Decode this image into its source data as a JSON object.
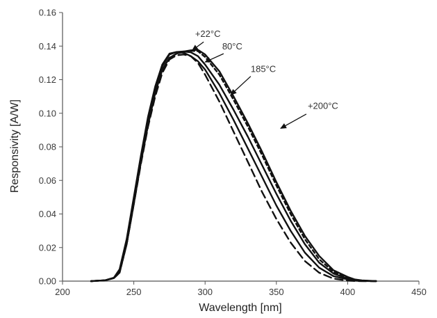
{
  "chart_data": {
    "type": "line",
    "title": "",
    "xlabel": "Wavelength [nm]",
    "ylabel": "Responsivity [A/W]",
    "xlim": [
      200,
      450
    ],
    "ylim": [
      0,
      0.16
    ],
    "x_ticks": [
      "200",
      "250",
      "300",
      "350",
      "400",
      "450"
    ],
    "y_ticks": [
      "0.00",
      "0.02",
      "0.04",
      "0.06",
      "0.08",
      "0.10",
      "0.12",
      "0.14",
      "0.16"
    ],
    "grid": false,
    "legend": "none",
    "series": [
      {
        "style": "long-dash",
        "x": [
          220,
          230,
          236,
          240,
          245,
          250,
          255,
          260,
          265,
          270,
          275,
          280,
          285,
          290,
          295,
          300,
          310,
          320,
          330,
          340,
          350,
          360,
          370,
          380,
          390,
          400,
          405,
          410,
          420
        ],
        "y": [
          0.0,
          0.0005,
          0.002,
          0.006,
          0.022,
          0.046,
          0.07,
          0.092,
          0.11,
          0.124,
          0.132,
          0.1345,
          0.135,
          0.134,
          0.13,
          0.123,
          0.107,
          0.089,
          0.071,
          0.053,
          0.037,
          0.023,
          0.012,
          0.005,
          0.0015,
          0.0003,
          0.0001,
          0.0,
          0.0
        ]
      },
      {
        "style": "solid",
        "x": [
          220,
          230,
          236,
          240,
          245,
          250,
          255,
          260,
          265,
          270,
          275,
          280,
          285,
          290,
          295,
          300,
          310,
          320,
          330,
          340,
          350,
          360,
          370,
          380,
          390,
          400,
          405,
          410,
          420
        ],
        "y": [
          0.0,
          0.0005,
          0.002,
          0.007,
          0.025,
          0.05,
          0.075,
          0.098,
          0.116,
          0.129,
          0.1355,
          0.1365,
          0.136,
          0.134,
          0.131,
          0.126,
          0.112,
          0.096,
          0.079,
          0.062,
          0.045,
          0.03,
          0.017,
          0.008,
          0.003,
          0.001,
          0.0003,
          0.0001,
          0.0
        ]
      },
      {
        "style": "solid",
        "x": [
          220,
          230,
          236,
          240,
          245,
          250,
          255,
          260,
          265,
          270,
          275,
          280,
          285,
          290,
          295,
          300,
          310,
          320,
          330,
          340,
          350,
          360,
          370,
          380,
          390,
          400,
          405,
          410,
          420
        ],
        "y": [
          0.0,
          0.0005,
          0.002,
          0.006,
          0.024,
          0.048,
          0.073,
          0.095,
          0.114,
          0.128,
          0.135,
          0.1365,
          0.1368,
          0.1363,
          0.134,
          0.129,
          0.117,
          0.102,
          0.086,
          0.069,
          0.052,
          0.036,
          0.022,
          0.011,
          0.0045,
          0.0015,
          0.0006,
          0.0002,
          0.0
        ]
      },
      {
        "style": "short-dash",
        "x": [
          220,
          230,
          236,
          240,
          245,
          250,
          255,
          260,
          265,
          270,
          275,
          280,
          285,
          290,
          295,
          300,
          310,
          320,
          330,
          340,
          350,
          360,
          370,
          380,
          390,
          400,
          405,
          410,
          420
        ],
        "y": [
          0.0,
          0.0005,
          0.0018,
          0.005,
          0.022,
          0.046,
          0.071,
          0.093,
          0.112,
          0.126,
          0.133,
          0.1355,
          0.1365,
          0.1372,
          0.137,
          0.1335,
          0.123,
          0.108,
          0.092,
          0.075,
          0.057,
          0.04,
          0.025,
          0.013,
          0.0055,
          0.002,
          0.0008,
          0.0003,
          0.0
        ]
      },
      {
        "style": "solid",
        "x": [
          220,
          230,
          236,
          240,
          245,
          250,
          255,
          260,
          265,
          270,
          275,
          280,
          285,
          290,
          295,
          300,
          310,
          320,
          330,
          340,
          350,
          360,
          370,
          380,
          390,
          400,
          405,
          410,
          420
        ],
        "y": [
          0.0,
          0.0005,
          0.0018,
          0.005,
          0.022,
          0.046,
          0.071,
          0.093,
          0.112,
          0.126,
          0.133,
          0.1355,
          0.1368,
          0.1375,
          0.1378,
          0.135,
          0.125,
          0.11,
          0.094,
          0.077,
          0.059,
          0.042,
          0.027,
          0.015,
          0.0065,
          0.0025,
          0.001,
          0.0004,
          0.0
        ]
      }
    ],
    "annotations": [
      {
        "label": "+22°C",
        "text_x": 293,
        "text_y": 0.1455,
        "arrow_from": [
          299,
          0.1425
        ],
        "arrow_to": [
          291,
          0.1375
        ]
      },
      {
        "label": "80°C",
        "text_x": 312,
        "text_y": 0.138,
        "arrow_from": [
          313,
          0.1355
        ],
        "arrow_to": [
          300,
          0.1305
        ]
      },
      {
        "label": "185°C",
        "text_x": 332,
        "text_y": 0.1245,
        "arrow_from": [
          332,
          0.122
        ],
        "arrow_to": [
          318,
          0.111
        ]
      },
      {
        "label": "+200°C",
        "text_x": 372,
        "text_y": 0.1025,
        "arrow_from": [
          371,
          0.0995
        ],
        "arrow_to": [
          353,
          0.091
        ]
      }
    ]
  }
}
